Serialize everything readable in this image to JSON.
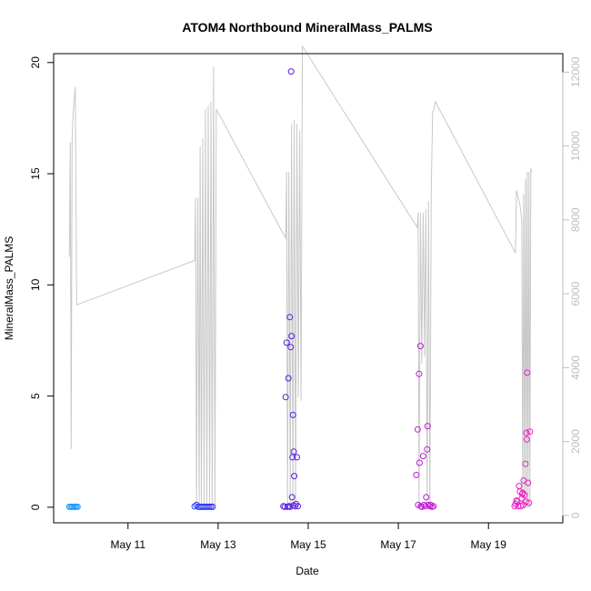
{
  "chart_data": {
    "type": "scatter",
    "title": "ATOM4 Northbound MineralMass_PALMS",
    "xlabel": "Date",
    "ylabel": "MineralMass_PALMS",
    "x_unit": "day of May",
    "xlim": [
      9.35,
      20.65
    ],
    "ylim": [
      -0.7,
      20.4
    ],
    "y2lim": [
      -200,
      12500
    ],
    "x_ticks": [
      11,
      13,
      15,
      17,
      19
    ],
    "x_tick_labels": [
      "May 11",
      "May 13",
      "May 15",
      "May 17",
      "May 19"
    ],
    "y_ticks": [
      0,
      5,
      10,
      15,
      20
    ],
    "y_tick_labels": [
      "0",
      "5",
      "10",
      "15",
      "20"
    ],
    "y2_ticks": [
      0,
      2000,
      4000,
      6000,
      8000,
      10000,
      12000
    ],
    "y2_tick_labels": [
      "0",
      "2000",
      "4000",
      "6000",
      "8000",
      "10000",
      "12000"
    ],
    "colors": {
      "line": "#c8c8c8",
      "right_axis": "#bdbdbd",
      "points_gradient": [
        "#1ea0ff",
        "#1e50ff",
        "#3a1ee6",
        "#8a1ee6",
        "#c81ed2",
        "#f01ec0"
      ]
    },
    "series": [
      {
        "type": "line",
        "axis": "right",
        "points": [
          [
            9.7,
            7000
          ],
          [
            9.72,
            10100
          ],
          [
            9.74,
            1800
          ],
          [
            9.76,
            10200
          ],
          [
            9.79,
            11000
          ],
          [
            9.81,
            11300
          ],
          [
            9.83,
            11600
          ],
          [
            9.86,
            5700
          ],
          [
            12.48,
            6900
          ],
          [
            12.5,
            8600
          ],
          [
            12.52,
            200
          ],
          [
            12.55,
            8600
          ],
          [
            12.58,
            300
          ],
          [
            12.6,
            10000
          ],
          [
            12.63,
            300
          ],
          [
            12.66,
            10200
          ],
          [
            12.69,
            300
          ],
          [
            12.72,
            11000
          ],
          [
            12.75,
            300
          ],
          [
            12.78,
            11100
          ],
          [
            12.81,
            300
          ],
          [
            12.84,
            11200
          ],
          [
            12.87,
            300
          ],
          [
            12.9,
            12150
          ],
          [
            12.93,
            300
          ],
          [
            12.96,
            11000
          ],
          [
            14.5,
            7500
          ],
          [
            14.52,
            9300
          ],
          [
            14.54,
            300
          ],
          [
            14.57,
            9300
          ],
          [
            14.6,
            300
          ],
          [
            14.63,
            10600
          ],
          [
            14.66,
            300
          ],
          [
            14.69,
            10700
          ],
          [
            14.72,
            300
          ],
          [
            14.75,
            10600
          ],
          [
            14.78,
            3200
          ],
          [
            14.81,
            10400
          ],
          [
            14.84,
            3100
          ],
          [
            14.87,
            12700
          ],
          [
            17.42,
            7800
          ],
          [
            17.44,
            8200
          ],
          [
            17.46,
            300
          ],
          [
            17.49,
            8200
          ],
          [
            17.52,
            4100
          ],
          [
            17.55,
            8200
          ],
          [
            17.58,
            4300
          ],
          [
            17.61,
            8300
          ],
          [
            17.64,
            300
          ],
          [
            17.67,
            8500
          ],
          [
            17.7,
            300
          ],
          [
            17.73,
            8800
          ],
          [
            17.76,
            10900
          ],
          [
            17.79,
            11000
          ],
          [
            17.82,
            11200
          ],
          [
            19.6,
            7100
          ],
          [
            19.62,
            8800
          ],
          [
            19.66,
            8600
          ],
          [
            19.7,
            8400
          ],
          [
            19.72,
            8200
          ],
          [
            19.74,
            8000
          ],
          [
            19.76,
            300
          ],
          [
            19.78,
            8700
          ],
          [
            19.8,
            200
          ],
          [
            19.82,
            9100
          ],
          [
            19.84,
            200
          ],
          [
            19.86,
            9300
          ],
          [
            19.88,
            200
          ],
          [
            19.9,
            9300
          ],
          [
            19.92,
            200
          ],
          [
            19.94,
            9400
          ],
          [
            19.96,
            9300
          ]
        ]
      },
      {
        "type": "scatter",
        "axis": "left",
        "points": [
          [
            9.7,
            0.02
          ],
          [
            9.73,
            0.02
          ],
          [
            9.76,
            0.02
          ],
          [
            9.79,
            0.02
          ],
          [
            9.82,
            0.02
          ],
          [
            9.85,
            0.02
          ],
          [
            9.88,
            0.02
          ],
          [
            12.48,
            0.04
          ],
          [
            12.52,
            0.1
          ],
          [
            12.56,
            0.02
          ],
          [
            12.6,
            0.02
          ],
          [
            12.64,
            0.02
          ],
          [
            12.68,
            0.02
          ],
          [
            12.72,
            0.02
          ],
          [
            12.76,
            0.02
          ],
          [
            12.8,
            0.02
          ],
          [
            12.84,
            0.02
          ],
          [
            12.88,
            0.02
          ],
          [
            14.45,
            0.05
          ],
          [
            14.48,
            0.02
          ],
          [
            14.5,
            4.95
          ],
          [
            14.52,
            7.4
          ],
          [
            14.54,
            0.02
          ],
          [
            14.56,
            5.8
          ],
          [
            14.57,
            0.05
          ],
          [
            14.59,
            8.55
          ],
          [
            14.6,
            0.02
          ],
          [
            14.61,
            7.2
          ],
          [
            14.62,
            19.6
          ],
          [
            14.63,
            7.7
          ],
          [
            14.64,
            0.45
          ],
          [
            14.65,
            2.25
          ],
          [
            14.66,
            4.15
          ],
          [
            14.67,
            0.08
          ],
          [
            14.68,
            2.5
          ],
          [
            14.69,
            1.4
          ],
          [
            14.71,
            0.05
          ],
          [
            14.73,
            0.15
          ],
          [
            14.75,
            2.25
          ],
          [
            14.77,
            0.05
          ],
          [
            17.4,
            1.45
          ],
          [
            17.43,
            3.5
          ],
          [
            17.44,
            0.1
          ],
          [
            17.46,
            6.0
          ],
          [
            17.47,
            2.0
          ],
          [
            17.49,
            7.25
          ],
          [
            17.5,
            0.05
          ],
          [
            17.52,
            0.02
          ],
          [
            17.55,
            2.3
          ],
          [
            17.57,
            0.1
          ],
          [
            17.6,
            0.05
          ],
          [
            17.62,
            0.45
          ],
          [
            17.64,
            2.6
          ],
          [
            17.65,
            3.65
          ],
          [
            17.67,
            0.1
          ],
          [
            17.7,
            0.05
          ],
          [
            17.72,
            0.1
          ],
          [
            17.75,
            0.02
          ],
          [
            17.78,
            0.05
          ],
          [
            19.58,
            0.05
          ],
          [
            19.6,
            0.15
          ],
          [
            19.62,
            0.3
          ],
          [
            19.64,
            0.25
          ],
          [
            19.66,
            0.05
          ],
          [
            19.68,
            0.95
          ],
          [
            19.7,
            0.7
          ],
          [
            19.72,
            0.05
          ],
          [
            19.74,
            0.4
          ],
          [
            19.75,
            0.6
          ],
          [
            19.76,
            0.65
          ],
          [
            19.77,
            0.1
          ],
          [
            19.78,
            1.2
          ],
          [
            19.8,
            0.55
          ],
          [
            19.82,
            1.95
          ],
          [
            19.83,
            0.25
          ],
          [
            19.84,
            3.35
          ],
          [
            19.85,
            3.05
          ],
          [
            19.86,
            6.05
          ],
          [
            19.88,
            1.1
          ],
          [
            19.9,
            0.2
          ],
          [
            19.92,
            3.4
          ]
        ]
      }
    ]
  }
}
